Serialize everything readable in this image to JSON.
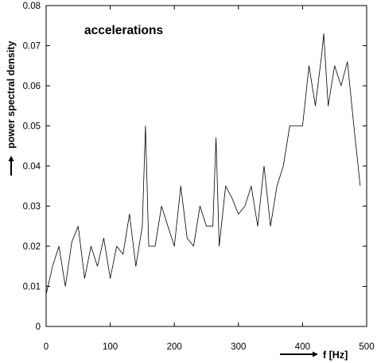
{
  "chart_data": {
    "type": "line",
    "title": "accelerations",
    "xlabel": "f [Hz]",
    "ylabel": "power spectral density",
    "xlim": [
      0,
      500
    ],
    "ylim": [
      0,
      0.08
    ],
    "xticks": [
      "0",
      "100",
      "200",
      "300",
      "400",
      "500"
    ],
    "yticks": [
      "0",
      "0.01",
      "0.02",
      "0.03",
      "0.04",
      "0.05",
      "0.06",
      "0.07",
      "0.08"
    ],
    "grid": false,
    "series": [
      {
        "x": [
          0,
          10,
          20,
          30,
          40,
          50,
          60,
          70,
          80,
          90,
          100,
          110,
          120,
          130,
          140,
          150,
          155,
          160,
          170,
          180,
          190,
          200,
          210,
          220,
          230,
          240,
          250,
          260,
          265,
          270,
          280,
          290,
          300,
          310,
          320,
          330,
          340,
          350,
          360,
          370,
          380,
          390,
          400,
          410,
          420,
          430,
          433,
          440,
          450,
          460,
          470,
          480,
          490
        ],
        "y": [
          0.008,
          0.015,
          0.02,
          0.01,
          0.021,
          0.025,
          0.012,
          0.02,
          0.015,
          0.022,
          0.012,
          0.02,
          0.018,
          0.028,
          0.015,
          0.025,
          0.05,
          0.02,
          0.02,
          0.03,
          0.025,
          0.02,
          0.035,
          0.022,
          0.02,
          0.03,
          0.025,
          0.025,
          0.047,
          0.02,
          0.035,
          0.032,
          0.028,
          0.03,
          0.035,
          0.025,
          0.04,
          0.025,
          0.035,
          0.04,
          0.05,
          0.05,
          0.05,
          0.065,
          0.055,
          0.068,
          0.073,
          0.055,
          0.065,
          0.06,
          0.066,
          0.05,
          0.035
        ]
      }
    ]
  }
}
